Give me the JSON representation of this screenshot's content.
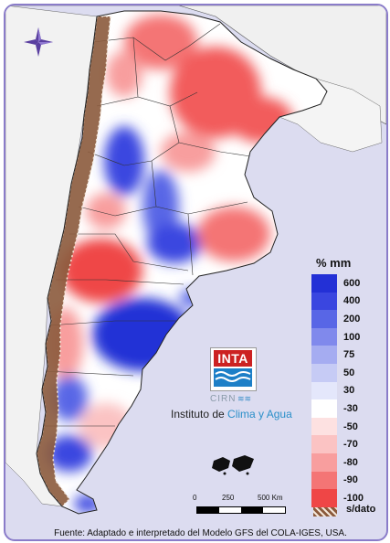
{
  "legend": {
    "title": "% mm",
    "items": [
      {
        "label": "600",
        "color": "#2330d6"
      },
      {
        "label": "400",
        "color": "#3a46e0"
      },
      {
        "label": "200",
        "color": "#5866e6"
      },
      {
        "label": "100",
        "color": "#8089ec"
      },
      {
        "label": "75",
        "color": "#a5acf1"
      },
      {
        "label": "50",
        "color": "#c6cbf5"
      },
      {
        "label": "30",
        "color": "#e4e7fb"
      },
      {
        "label": "-30",
        "color": "#ffffff"
      },
      {
        "label": "-50",
        "color": "#fde1e1"
      },
      {
        "label": "-70",
        "color": "#fbc3c3"
      },
      {
        "label": "-80",
        "color": "#f89e9e"
      },
      {
        "label": "-90",
        "color": "#f47575"
      },
      {
        "label": "-100",
        "color": "#ef4646"
      }
    ],
    "no_data_label": "s/dato"
  },
  "logo": {
    "inta": "INTA",
    "cirn": "CIRN",
    "institute_prefix": "Instituto de ",
    "institute_highlight": "Clima y Agua"
  },
  "scale": {
    "labels": [
      "0",
      "250",
      "500 Km"
    ]
  },
  "source": "Fuente: Adaptado e interpretado del Modelo GFS del COLA-IGES, USA.",
  "icons": {
    "compass": "compass-rose-icon"
  }
}
